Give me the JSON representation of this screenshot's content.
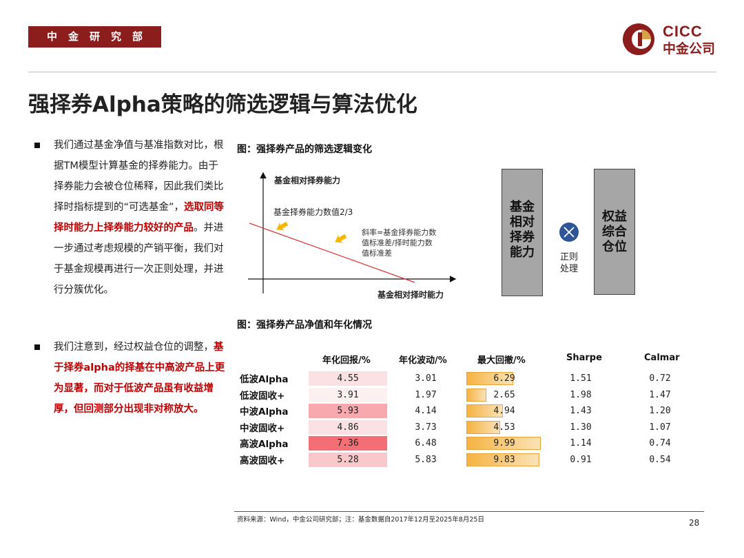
{
  "header": {
    "dept_label": "中金研究部",
    "logo_en": "CICC",
    "logo_cn": "中金公司",
    "brand_color": "#8b1d1d"
  },
  "title": "强择券Alpha策略的筛选逻辑与算法优化",
  "left_text": {
    "bullet1": {
      "part1": "我们通过基金净值与基准指数对比，根据TM模型计算基金的择券能力。由于择券能力会被仓位稀释，因此我们类比择时指标提到的“可选基金”，",
      "highlight": "选取同等择时能力上择券能力较好的产品",
      "part2": "。并进一步通过考虑规模的产销平衡，我们对于基金规模再进行一次正则处理，并进行分簇优化。"
    },
    "bullet2": {
      "part1": "我们注意到，经过权益仓位的调整，",
      "highlight": "基于择券alpha的择基在中高波产品上更为显著，而对于低波产品虽有收益增厚，但回测部分出现非对称放大。"
    }
  },
  "figure1": {
    "title": "图：强择券产品的筛选逻辑变化",
    "y_axis_label": "基金相对择券能力",
    "x_axis_label": "基金相对择时能力",
    "threshold_label": "基金择券能力数值2/3",
    "slope_note": "斜率=基金择券能力数值标准差/择时能力数值标准差",
    "box_left": "基金相对择券能力",
    "box_right": "权益综合仓位",
    "operator_label": "正则处理"
  },
  "figure2": {
    "title": "图：强择券产品净值和年化情况",
    "columns": [
      "年化回报/%",
      "年化波动/%",
      "最大回撤/%",
      "Sharpe",
      "Calmar"
    ],
    "rows": [
      {
        "name": "低波Alpha",
        "ret": "4.55",
        "vol": "3.01",
        "dd": "6.29",
        "sharpe": "1.51",
        "calmar": "0.72"
      },
      {
        "name": "低波固收+",
        "ret": "3.91",
        "vol": "1.97",
        "dd": "2.65",
        "sharpe": "1.98",
        "calmar": "1.47"
      },
      {
        "name": "中波Alpha",
        "ret": "5.93",
        "vol": "4.14",
        "dd": "4.94",
        "sharpe": "1.43",
        "calmar": "1.20"
      },
      {
        "name": "中波固收+",
        "ret": "4.86",
        "vol": "3.73",
        "dd": "4.53",
        "sharpe": "1.30",
        "calmar": "1.07"
      },
      {
        "name": "高波Alpha",
        "ret": "7.36",
        "vol": "6.48",
        "dd": "9.99",
        "sharpe": "1.14",
        "calmar": "0.74"
      },
      {
        "name": "高波固收+",
        "ret": "5.28",
        "vol": "5.83",
        "dd": "9.83",
        "sharpe": "0.91",
        "calmar": "0.54"
      }
    ],
    "ret_colors": [
      "#fbe1e3",
      "#fdf0f1",
      "#f7a9ae",
      "#fbe1e3",
      "#f46e76",
      "#fac7ca"
    ]
  },
  "footer": {
    "source": "资料来源：Wind，中金公司研究部；注：基金数据自2017年12月至2025年8月25日",
    "page": "28"
  }
}
